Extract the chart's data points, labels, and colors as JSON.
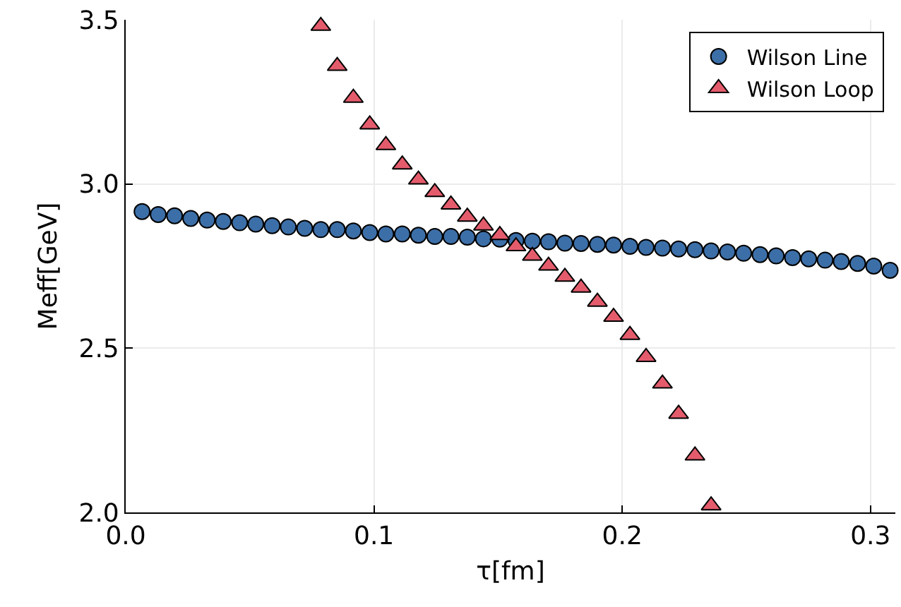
{
  "chart_data": {
    "type": "scatter",
    "xlabel": "τ[fm]",
    "ylabel": "Meff[GeV]",
    "xlim": [
      0,
      0.31
    ],
    "xticks": [
      {
        "value": 0,
        "label": "0.0"
      },
      0.1,
      0.2,
      0.3
    ],
    "ylim": [
      2.0,
      3.5
    ],
    "yticks": [
      {
        "value": 2.0,
        "label": "2.0"
      },
      2.5,
      {
        "value": 3.0,
        "label": "3.0"
      },
      3.5
    ],
    "grid": true,
    "legend": "top right",
    "series": [
      {
        "name": "Wilson Line",
        "color": "#3c6fa8",
        "marker": "circle",
        "x": [
          0.0066,
          0.0131,
          0.0197,
          0.0262,
          0.0328,
          0.0393,
          0.0459,
          0.0524,
          0.059,
          0.0655,
          0.0721,
          0.0786,
          0.0852,
          0.0917,
          0.0983,
          0.1048,
          0.1114,
          0.1179,
          0.1245,
          0.131,
          0.1376,
          0.1441,
          0.1507,
          0.1572,
          0.1638,
          0.1703,
          0.1769,
          0.1834,
          0.19,
          0.1965,
          0.2031,
          0.2096,
          0.2162,
          0.2227,
          0.2293,
          0.2358,
          0.2424,
          0.2489,
          0.2555,
          0.262,
          0.2686,
          0.2751,
          0.2817,
          0.2882,
          0.2948,
          0.3013,
          0.3079
        ],
        "values": [
          2.916,
          2.907,
          2.903,
          2.895,
          2.89,
          2.886,
          2.882,
          2.878,
          2.873,
          2.869,
          2.865,
          2.861,
          2.861,
          2.857,
          2.852,
          2.848,
          2.848,
          2.844,
          2.84,
          2.84,
          2.838,
          2.833,
          2.832,
          2.828,
          2.826,
          2.824,
          2.82,
          2.819,
          2.816,
          2.814,
          2.81,
          2.807,
          2.805,
          2.802,
          2.8,
          2.796,
          2.793,
          2.789,
          2.785,
          2.781,
          2.776,
          2.772,
          2.768,
          2.764,
          2.758,
          2.75,
          2.737
        ]
      },
      {
        "name": "Wilson Loop",
        "color": "#e45c6c",
        "marker": "triangle",
        "x": [
          0.0786,
          0.0852,
          0.0917,
          0.0983,
          0.1048,
          0.1114,
          0.1179,
          0.1245,
          0.131,
          0.1376,
          0.1441,
          0.1507,
          0.1572,
          0.1638,
          0.1703,
          0.1769,
          0.1834,
          0.19,
          0.1965,
          0.2031,
          0.2096,
          0.2162,
          0.2227,
          0.2293,
          0.2358
        ],
        "values": [
          3.481,
          3.359,
          3.262,
          3.181,
          3.118,
          3.059,
          3.013,
          2.975,
          2.937,
          2.9,
          2.873,
          2.844,
          2.81,
          2.781,
          2.751,
          2.717,
          2.684,
          2.641,
          2.595,
          2.54,
          2.473,
          2.392,
          2.3,
          2.173,
          2.021
        ]
      }
    ]
  }
}
